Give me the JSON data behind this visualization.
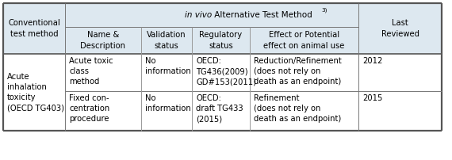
{
  "header_bg": "#dde8f0",
  "table_bg": "#ffffff",
  "col0_header": "Conventional\ntest method",
  "col1_header": "Name &\nDescription",
  "col2_header": "Validation\nstatus",
  "col3_header": "Regulatory\nstatus",
  "col4_header": "Effect or Potential\neffect on animal use",
  "col5_header": "Last\nReviewed",
  "rows": [
    {
      "col0": "Acute\ninhalation\ntoxicity\n(OECD TG403)",
      "col1": "Acute toxic\nclass\nmethod",
      "col2": "No\ninformation",
      "col3": "OECD:\nTG436(2009)\nGD#153(2011)",
      "col4": "Reduction/Refinement\n(does not rely on\ndeath as an endpoint)",
      "col5": "2012"
    },
    {
      "col0": "",
      "col1": "Fixed con-\ncentration\nprocedure",
      "col2": "No\ninformation",
      "col3": "OECD:\ndraft TG433\n(2015)",
      "col4": "Refinement\n(does not rely on\ndeath as an endpoint)",
      "col5": "2015"
    }
  ],
  "font_size": 7.2,
  "figsize": [
    5.7,
    2.02
  ],
  "dpi": 100
}
